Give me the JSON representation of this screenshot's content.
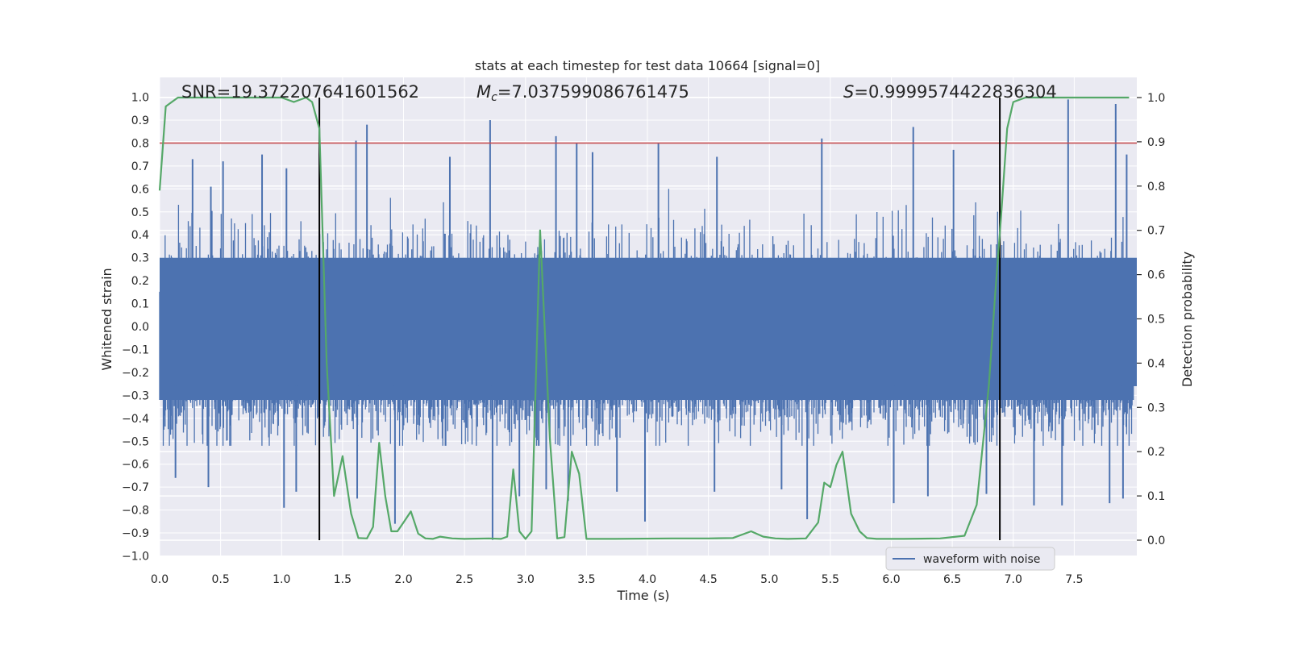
{
  "chart_data": {
    "type": "line",
    "title": "stats at each timestep for test data 10664 [signal=0]",
    "xlabel": "Time (s)",
    "ylabel": "Whitened strain",
    "y2label": "Detection probability",
    "xlim": [
      0,
      8
    ],
    "ylim": [
      -1.05,
      1.1
    ],
    "y2lim": [
      -0.045,
      1.045
    ],
    "xticks": [
      "0.0",
      "0.5",
      "1.0",
      "1.5",
      "2.0",
      "2.5",
      "3.0",
      "3.5",
      "4.0",
      "4.5",
      "5.0",
      "5.5",
      "6.0",
      "6.5",
      "7.0",
      "7.5"
    ],
    "yticks": [
      "1.0",
      "0.9",
      "0.8",
      "0.7",
      "0.6",
      "0.5",
      "0.4",
      "0.3",
      "0.2",
      "0.1",
      "0.0",
      "−0.1",
      "−0.2",
      "−0.3",
      "−0.4",
      "−0.5",
      "−0.6",
      "−0.7",
      "−0.8",
      "−0.9",
      "−1.0"
    ],
    "y2ticks": [
      "1.0",
      "0.9",
      "0.8",
      "0.7",
      "0.6",
      "0.5",
      "0.4",
      "0.3",
      "0.2",
      "0.1",
      "0.0"
    ],
    "annotations": {
      "snr": "SNR=19.372207641601562",
      "mc_symbol": "M",
      "mc_subscript": "c",
      "mc_value": "=7.037599086761475",
      "s_symbol": "S",
      "s_value": "=0.9999574422836304"
    },
    "legend": {
      "label": "waveform with noise",
      "placement": "lower-right"
    },
    "threshold_line": {
      "value": 0.8,
      "axis": "left",
      "color": "#c44e52"
    },
    "event_markers_x": [
      1.31,
      6.89
    ],
    "waveform": {
      "name": "waveform with noise",
      "color": "#4c72b0",
      "mean": 0.03,
      "envelope_typical": [
        -0.45,
        0.45
      ],
      "peaks": [
        [
          0.27,
          0.73
        ],
        [
          0.42,
          0.61
        ],
        [
          0.52,
          0.72
        ],
        [
          0.84,
          0.75
        ],
        [
          1.04,
          0.69
        ],
        [
          1.61,
          0.81
        ],
        [
          1.7,
          0.88
        ],
        [
          2.38,
          0.74
        ],
        [
          2.71,
          0.9
        ],
        [
          3.25,
          0.83
        ],
        [
          3.42,
          0.8
        ],
        [
          3.55,
          0.76
        ],
        [
          4.09,
          0.8
        ],
        [
          4.57,
          0.74
        ],
        [
          5.43,
          0.82
        ],
        [
          6.18,
          0.87
        ],
        [
          6.51,
          0.77
        ],
        [
          7.45,
          0.99
        ],
        [
          7.84,
          0.97
        ],
        [
          7.93,
          0.75
        ]
      ],
      "troughs": [
        [
          0.13,
          -0.66
        ],
        [
          0.4,
          -0.7
        ],
        [
          1.02,
          -0.79
        ],
        [
          1.12,
          -0.72
        ],
        [
          1.62,
          -0.75
        ],
        [
          1.93,
          -0.86
        ],
        [
          2.73,
          -0.93
        ],
        [
          2.95,
          -0.74
        ],
        [
          3.17,
          -0.71
        ],
        [
          3.35,
          -0.76
        ],
        [
          3.75,
          -0.72
        ],
        [
          3.98,
          -0.85
        ],
        [
          4.55,
          -0.72
        ],
        [
          5.1,
          -0.71
        ],
        [
          5.31,
          -0.84
        ],
        [
          6.02,
          -0.77
        ],
        [
          6.3,
          -0.74
        ],
        [
          6.78,
          -0.73
        ],
        [
          7.17,
          -0.78
        ],
        [
          7.4,
          -0.78
        ],
        [
          7.79,
          -0.77
        ],
        [
          7.9,
          -0.75
        ]
      ]
    },
    "detection_probability": {
      "name": "detection probability",
      "color": "#55a868",
      "axis": "right",
      "x": [
        0,
        0.05,
        0.1,
        0.15,
        0.3,
        1.0,
        1.1,
        1.2,
        1.25,
        1.31,
        1.37,
        1.43,
        1.5,
        1.57,
        1.63,
        1.7,
        1.75,
        1.8,
        1.85,
        1.9,
        1.95,
        2.0,
        2.06,
        2.12,
        2.18,
        2.24,
        2.3,
        2.4,
        2.5,
        2.7,
        2.8,
        2.85,
        2.9,
        2.95,
        3.0,
        3.05,
        3.12,
        3.2,
        3.26,
        3.32,
        3.38,
        3.44,
        3.5,
        3.55,
        3.7,
        4.2,
        4.5,
        4.7,
        4.85,
        4.95,
        5.05,
        5.15,
        5.3,
        5.4,
        5.45,
        5.5,
        5.55,
        5.6,
        5.67,
        5.74,
        5.8,
        5.88,
        5.98,
        6.1,
        6.4,
        6.6,
        6.7,
        6.8,
        6.85,
        6.9,
        6.95,
        7.0,
        7.1,
        7.3,
        7.95
      ],
      "values": [
        0.79,
        0.98,
        0.99,
        1.0,
        1.0,
        1.0,
        0.99,
        1.0,
        0.99,
        0.93,
        0.4,
        0.1,
        0.19,
        0.06,
        0.005,
        0.004,
        0.03,
        0.22,
        0.1,
        0.02,
        0.02,
        0.04,
        0.065,
        0.015,
        0.004,
        0.003,
        0.008,
        0.004,
        0.003,
        0.004,
        0.003,
        0.008,
        0.16,
        0.02,
        0.003,
        0.02,
        0.7,
        0.23,
        0.004,
        0.007,
        0.2,
        0.15,
        0.003,
        0.003,
        0.003,
        0.004,
        0.004,
        0.005,
        0.02,
        0.008,
        0.004,
        0.003,
        0.004,
        0.04,
        0.13,
        0.12,
        0.17,
        0.2,
        0.06,
        0.02,
        0.005,
        0.003,
        0.003,
        0.003,
        0.004,
        0.01,
        0.08,
        0.35,
        0.55,
        0.73,
        0.93,
        0.99,
        1.0,
        1.0,
        1.0
      ]
    }
  }
}
